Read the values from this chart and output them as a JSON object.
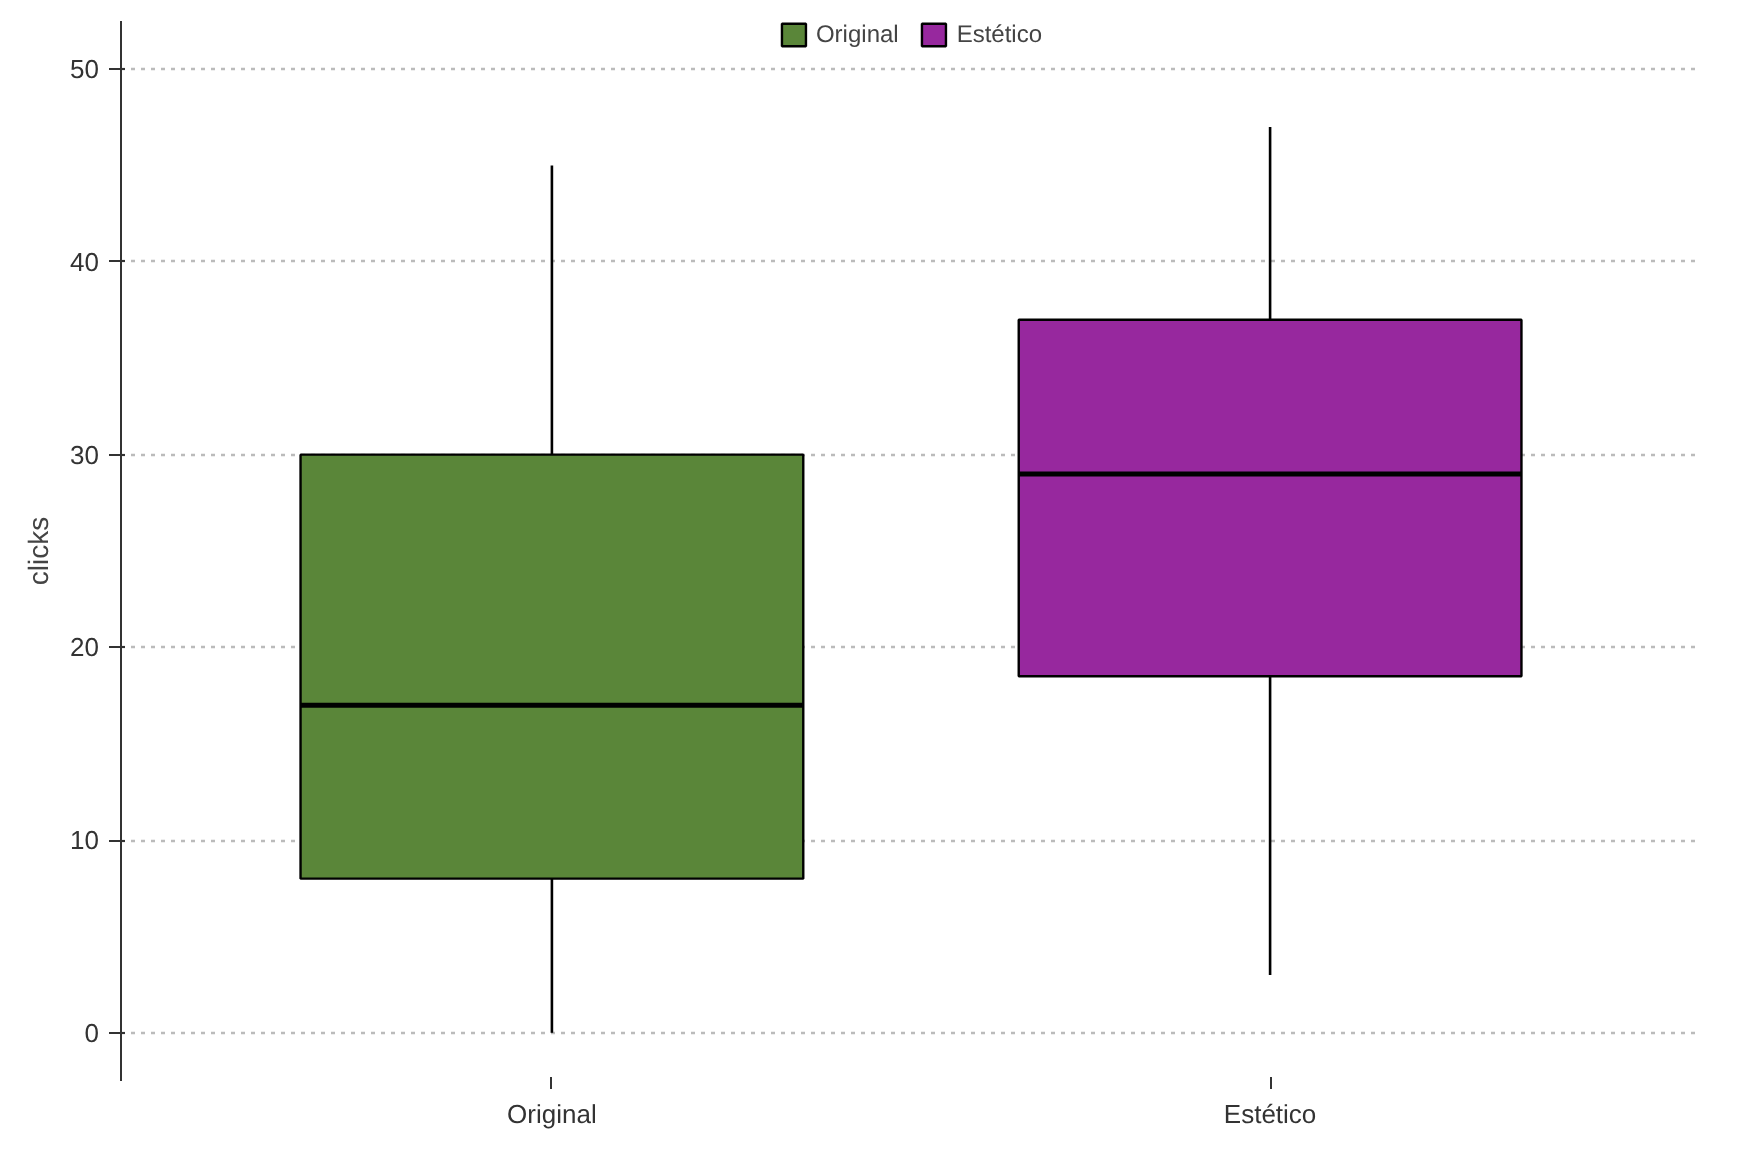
{
  "chart_data": {
    "type": "box",
    "ylabel": "clicks",
    "categories": [
      "Original",
      "Estético"
    ],
    "series": [
      {
        "name": "Original",
        "color": "#5a8639",
        "boxes": [
          {
            "low": 0,
            "q1": 8,
            "median": 17,
            "q3": 30,
            "high": 45
          },
          null
        ]
      },
      {
        "name": "Estético",
        "color": "#97289e",
        "boxes": [
          null,
          {
            "low": 3,
            "q1": 18.5,
            "median": 29,
            "q3": 37,
            "high": 47
          }
        ]
      }
    ],
    "ylim": [
      -2.5,
      52.5
    ],
    "yticks": [
      0,
      10,
      20,
      30,
      40,
      50
    ],
    "grid": "y",
    "legend": "top"
  }
}
